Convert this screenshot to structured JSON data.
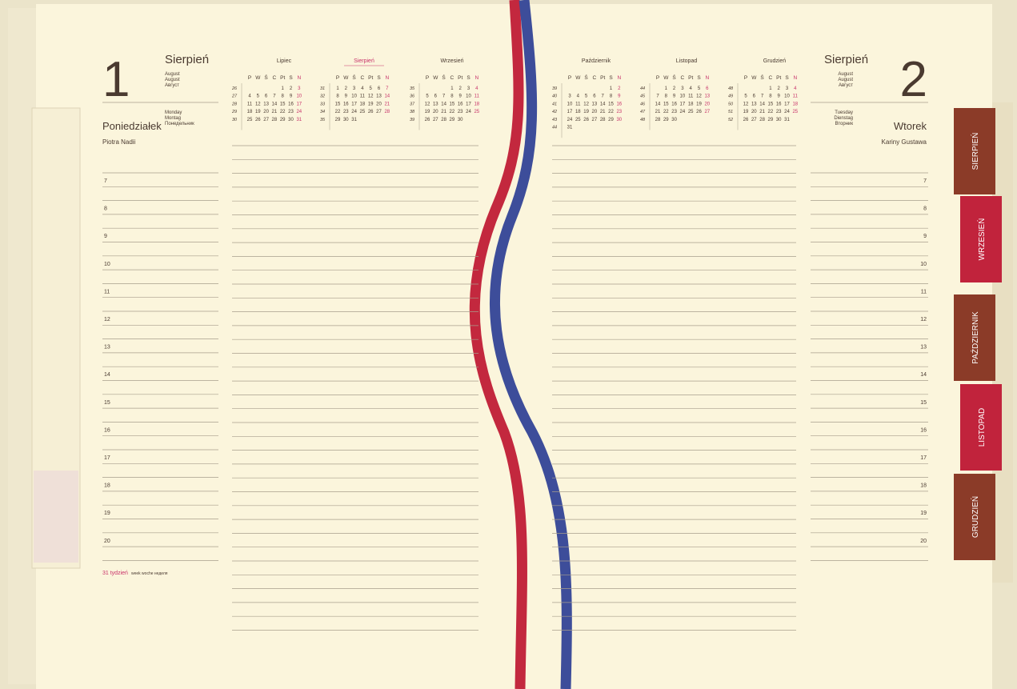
{
  "left_page": {
    "day_number": 1,
    "month": "Sierpień",
    "month_translations": [
      "August",
      "August",
      "Август"
    ],
    "weekday_translations": [
      "Monday",
      "Montag",
      "Понедельник"
    ],
    "weekday": "Poniedziałek",
    "name_days": "Piotra Nadii",
    "week_label": "31 tydzień",
    "week_translations": "week woche неделя"
  },
  "right_page": {
    "day_number": 2,
    "month": "Sierpień",
    "month_translations": [
      "August",
      "August",
      "Август"
    ],
    "weekday_translations": [
      "Tuesday",
      "Dienstag",
      "Вторник"
    ],
    "weekday": "Wtorek",
    "name_days": "Kariny Gustawa"
  },
  "calendar_weekdays": [
    "P",
    "W",
    "Ś",
    "C",
    "Pt",
    "S",
    "N"
  ],
  "calendars": [
    {
      "month": "Lipiec",
      "weeks": [
        {
          "week": 26,
          "days": [
            null,
            null,
            null,
            null,
            1,
            2,
            3
          ]
        },
        {
          "week": 27,
          "days": [
            4,
            5,
            6,
            7,
            8,
            9,
            10
          ]
        },
        {
          "week": 28,
          "days": [
            11,
            12,
            13,
            14,
            15,
            16,
            17
          ]
        },
        {
          "week": 29,
          "days": [
            18,
            19,
            20,
            21,
            22,
            23,
            24
          ]
        },
        {
          "week": 30,
          "days": [
            25,
            26,
            27,
            28,
            29,
            30,
            31
          ]
        }
      ]
    },
    {
      "month": "Sierpień",
      "weeks": [
        {
          "week": 31,
          "days": [
            1,
            2,
            3,
            4,
            5,
            6,
            7
          ]
        },
        {
          "week": 32,
          "days": [
            8,
            9,
            10,
            11,
            12,
            13,
            14
          ]
        },
        {
          "week": 33,
          "days": [
            15,
            16,
            17,
            18,
            19,
            20,
            21
          ]
        },
        {
          "week": 34,
          "days": [
            22,
            23,
            24,
            25,
            26,
            27,
            28
          ]
        },
        {
          "week": 35,
          "days": [
            29,
            30,
            31,
            null,
            null,
            null,
            null
          ]
        }
      ]
    },
    {
      "month": "Wrzesień",
      "weeks": [
        {
          "week": 35,
          "days": [
            null,
            null,
            null,
            1,
            2,
            3,
            4
          ]
        },
        {
          "week": 36,
          "days": [
            5,
            6,
            7,
            8,
            9,
            10,
            11
          ]
        },
        {
          "week": 37,
          "days": [
            12,
            13,
            14,
            15,
            16,
            17,
            18
          ]
        },
        {
          "week": 38,
          "days": [
            19,
            20,
            21,
            22,
            23,
            24,
            25
          ]
        },
        {
          "week": 39,
          "days": [
            26,
            27,
            28,
            29,
            30,
            null,
            null
          ]
        }
      ]
    },
    {
      "month": "Październik",
      "weeks": [
        {
          "week": 39,
          "days": [
            null,
            null,
            null,
            null,
            null,
            1,
            2
          ]
        },
        {
          "week": 40,
          "days": [
            3,
            4,
            5,
            6,
            7,
            8,
            9
          ]
        },
        {
          "week": 41,
          "days": [
            10,
            11,
            12,
            13,
            14,
            15,
            16
          ]
        },
        {
          "week": 42,
          "days": [
            17,
            18,
            19,
            20,
            21,
            22,
            23
          ]
        },
        {
          "week": 43,
          "days": [
            24,
            25,
            26,
            27,
            28,
            29,
            30
          ]
        },
        {
          "week": 44,
          "days": [
            31,
            null,
            null,
            null,
            null,
            null,
            null
          ]
        }
      ]
    },
    {
      "month": "Listopad",
      "weeks": [
        {
          "week": 44,
          "days": [
            null,
            1,
            2,
            3,
            4,
            5,
            6
          ]
        },
        {
          "week": 45,
          "days": [
            7,
            8,
            9,
            10,
            11,
            12,
            13
          ]
        },
        {
          "week": 46,
          "days": [
            14,
            15,
            16,
            17,
            18,
            19,
            20
          ]
        },
        {
          "week": 47,
          "days": [
            21,
            22,
            23,
            24,
            25,
            26,
            27
          ]
        },
        {
          "week": 48,
          "days": [
            28,
            29,
            30,
            null,
            null,
            null,
            null
          ]
        }
      ]
    },
    {
      "month": "Grudzień",
      "weeks": [
        {
          "week": 48,
          "days": [
            null,
            null,
            null,
            1,
            2,
            3,
            4
          ]
        },
        {
          "week": 49,
          "days": [
            5,
            6,
            7,
            8,
            9,
            10,
            11
          ]
        },
        {
          "week": 50,
          "days": [
            12,
            13,
            14,
            15,
            16,
            17,
            18
          ]
        },
        {
          "week": 51,
          "days": [
            19,
            20,
            21,
            22,
            23,
            24,
            25
          ]
        },
        {
          "week": 52,
          "days": [
            26,
            27,
            28,
            29,
            30,
            31,
            null
          ]
        }
      ]
    }
  ],
  "hours": [
    7,
    8,
    9,
    10,
    11,
    12,
    13,
    14,
    15,
    16,
    17,
    18,
    19,
    20
  ],
  "tabs": [
    "SIERPIEŃ",
    "WRZESIEŃ",
    "PAŹDZIERNIK",
    "LISTOPAD",
    "GRUDZIEŃ"
  ]
}
